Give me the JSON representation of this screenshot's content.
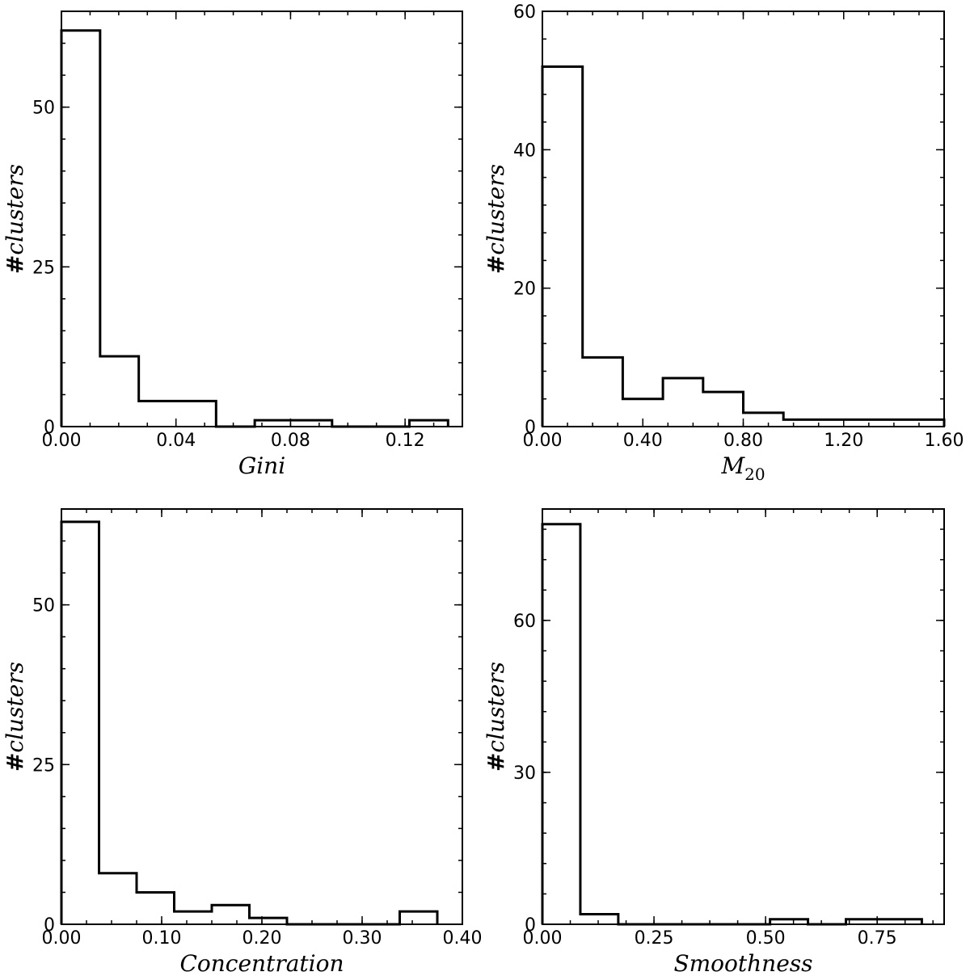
{
  "chart_data": [
    {
      "type": "histogram",
      "title": "",
      "xlabel": "Gini",
      "xlabel_sub": "",
      "ylabel_prefix": "#",
      "ylabel": "clusters",
      "xlim": [
        0,
        0.14
      ],
      "ylim": [
        0,
        65
      ],
      "xticks": [
        0,
        0.04,
        0.08,
        0.12
      ],
      "xtick_labels": [
        "0.00",
        "0.04",
        "0.08",
        "0.12"
      ],
      "yticks": [
        0,
        25,
        50
      ],
      "ytick_labels": [
        "0",
        "25",
        "50"
      ],
      "bin_edges": [
        0,
        0.0135,
        0.027,
        0.0405,
        0.054,
        0.0675,
        0.081,
        0.0945,
        0.108,
        0.1215,
        0.135
      ],
      "counts": [
        62,
        11,
        4,
        4,
        0,
        1,
        1,
        0,
        0,
        1
      ],
      "grid": false
    },
    {
      "type": "histogram",
      "title": "",
      "xlabel": "M",
      "xlabel_sub": "20",
      "ylabel_prefix": "#",
      "ylabel": "clusters",
      "xlim": [
        0,
        1.6
      ],
      "ylim": [
        0,
        60
      ],
      "xticks": [
        0,
        0.4,
        0.8,
        1.2,
        1.6
      ],
      "xtick_labels": [
        "0.00",
        "0.40",
        "0.80",
        "1.20",
        "1.60"
      ],
      "yticks": [
        0,
        20,
        40,
        60
      ],
      "ytick_labels": [
        "0",
        "20",
        "40",
        "60"
      ],
      "bin_edges": [
        0,
        0.16,
        0.32,
        0.48,
        0.64,
        0.8,
        0.96,
        1.12,
        1.28,
        1.44,
        1.6
      ],
      "counts": [
        52,
        10,
        4,
        7,
        5,
        2,
        1,
        1,
        1,
        1
      ],
      "grid": false
    },
    {
      "type": "histogram",
      "title": "",
      "xlabel": "Concentration",
      "xlabel_sub": "",
      "ylabel_prefix": "#",
      "ylabel": "clusters",
      "xlim": [
        0,
        0.4
      ],
      "ylim": [
        0,
        65
      ],
      "xticks": [
        0,
        0.1,
        0.2,
        0.3,
        0.4
      ],
      "xtick_labels": [
        "0.00",
        "0.10",
        "0.20",
        "0.30",
        "0.40"
      ],
      "yticks": [
        0,
        25,
        50
      ],
      "ytick_labels": [
        "0",
        "25",
        "50"
      ],
      "bin_edges": [
        0,
        0.0375,
        0.075,
        0.1125,
        0.15,
        0.1875,
        0.225,
        0.2625,
        0.3,
        0.3375,
        0.375
      ],
      "counts": [
        63,
        8,
        5,
        2,
        3,
        1,
        0,
        0,
        0,
        2
      ],
      "grid": false
    },
    {
      "type": "histogram",
      "title": "",
      "xlabel": "Smoothness",
      "xlabel_sub": "",
      "ylabel_prefix": "#",
      "ylabel": "clusters",
      "xlim": [
        0,
        0.9
      ],
      "ylim": [
        0,
        82
      ],
      "xticks": [
        0,
        0.25,
        0.5,
        0.75
      ],
      "xtick_labels": [
        "0.00",
        "0.25",
        "0.50",
        "0.75"
      ],
      "yticks": [
        0,
        30,
        60
      ],
      "ytick_labels": [
        "0",
        "30",
        "60"
      ],
      "bin_edges": [
        0,
        0.085,
        0.17,
        0.255,
        0.34,
        0.425,
        0.51,
        0.595,
        0.68,
        0.765,
        0.85
      ],
      "counts": [
        79,
        2,
        0,
        0,
        0,
        0,
        1,
        0,
        1,
        1
      ],
      "grid": false
    }
  ]
}
